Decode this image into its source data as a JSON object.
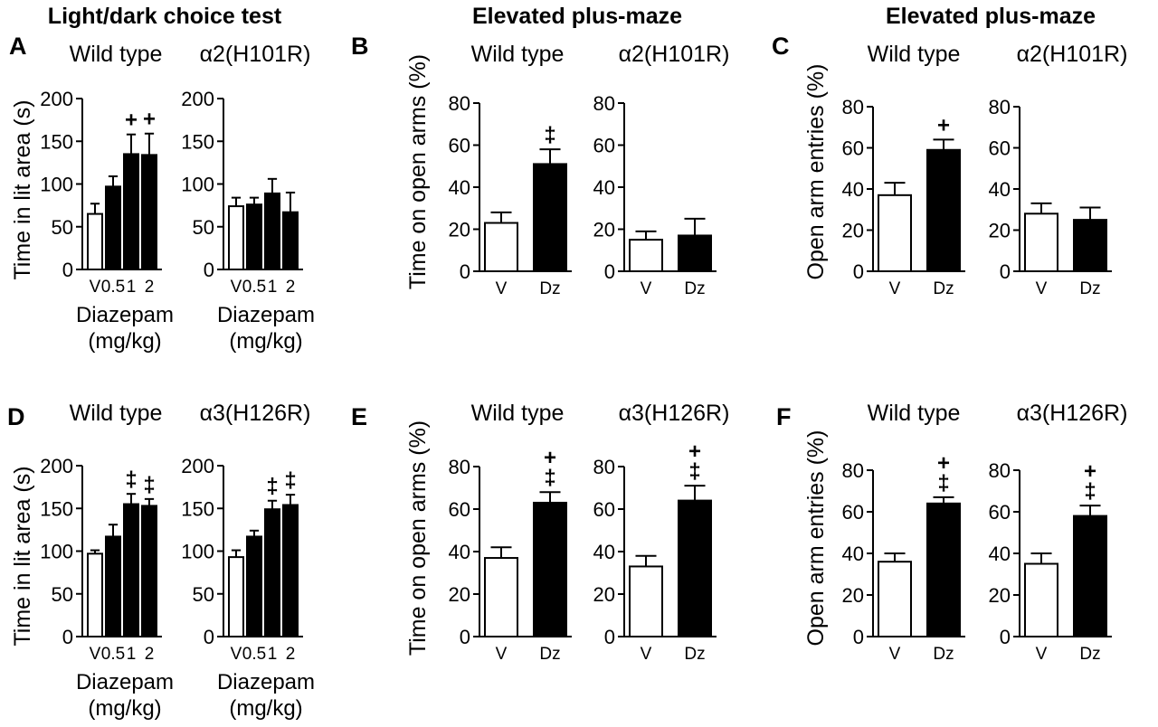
{
  "headers": [
    "Light/dark choice test",
    "Elevated plus-maze",
    "Elevated plus-maze"
  ],
  "panels": [
    {
      "letter": "A",
      "ylabel": "Time in lit area (s)",
      "xlabel": "Diazepam",
      "xunit": "(mg/kg)",
      "charts": [
        {
          "title": "Wild type",
          "type": "bar",
          "categories": [
            "V",
            "0.5",
            "1",
            "2"
          ],
          "values": [
            65,
            97,
            135,
            134
          ],
          "errors": [
            12,
            12,
            23,
            25
          ],
          "fills": [
            "white",
            "black",
            "black",
            "black"
          ],
          "sig": [
            "",
            "",
            "+",
            "+"
          ],
          "ylim": [
            0,
            200
          ],
          "yticks": [
            0,
            50,
            100,
            150,
            200
          ]
        },
        {
          "title": "α2(H101R)",
          "type": "bar",
          "categories": [
            "V",
            "0.5",
            "1",
            "2"
          ],
          "values": [
            74,
            76,
            89,
            67
          ],
          "errors": [
            10,
            8,
            17,
            23
          ],
          "fills": [
            "white",
            "black",
            "black",
            "black"
          ],
          "sig": [
            "",
            "",
            "",
            ""
          ],
          "ylim": [
            0,
            200
          ],
          "yticks": [
            0,
            50,
            100,
            150,
            200
          ]
        }
      ]
    },
    {
      "letter": "B",
      "ylabel": "Time on open arms (%)",
      "xlabel": "",
      "xunit": "",
      "charts": [
        {
          "title": "Wild type",
          "type": "bar",
          "categories": [
            "V",
            "Dz"
          ],
          "values": [
            23,
            51
          ],
          "errors": [
            5,
            7
          ],
          "fills": [
            "white",
            "black"
          ],
          "sig": [
            "",
            "‡"
          ],
          "ylim": [
            0,
            80
          ],
          "yticks": [
            0,
            20,
            40,
            60,
            80
          ]
        },
        {
          "title": "α2(H101R)",
          "type": "bar",
          "categories": [
            "V",
            "Dz"
          ],
          "values": [
            15,
            17
          ],
          "errors": [
            4,
            8
          ],
          "fills": [
            "white",
            "black"
          ],
          "sig": [
            "",
            ""
          ],
          "ylim": [
            0,
            80
          ],
          "yticks": [
            0,
            20,
            40,
            60,
            80
          ]
        }
      ]
    },
    {
      "letter": "C",
      "ylabel": "Open arm entries (%)",
      "xlabel": "",
      "xunit": "",
      "charts": [
        {
          "title": "Wild type",
          "type": "bar",
          "categories": [
            "V",
            "Dz"
          ],
          "values": [
            37,
            59
          ],
          "errors": [
            6,
            5
          ],
          "fills": [
            "white",
            "black"
          ],
          "sig": [
            "",
            "+"
          ],
          "ylim": [
            0,
            80
          ],
          "yticks": [
            0,
            20,
            40,
            60,
            80
          ]
        },
        {
          "title": "α2(H101R)",
          "type": "bar",
          "categories": [
            "V",
            "Dz"
          ],
          "values": [
            28,
            25
          ],
          "errors": [
            5,
            6
          ],
          "fills": [
            "white",
            "black"
          ],
          "sig": [
            "",
            ""
          ],
          "ylim": [
            0,
            80
          ],
          "yticks": [
            0,
            20,
            40,
            60,
            80
          ]
        }
      ]
    },
    {
      "letter": "D",
      "ylabel": "Time in lit area (s)",
      "xlabel": "Diazepam",
      "xunit": "(mg/kg)",
      "charts": [
        {
          "title": "Wild type",
          "type": "bar",
          "categories": [
            "V",
            "0.5",
            "1",
            "2"
          ],
          "values": [
            97,
            117,
            155,
            153
          ],
          "errors": [
            4,
            14,
            12,
            8
          ],
          "fills": [
            "white",
            "black",
            "black",
            "black"
          ],
          "sig": [
            "",
            "",
            "‡",
            "‡"
          ],
          "ylim": [
            0,
            200
          ],
          "yticks": [
            0,
            50,
            100,
            150,
            200
          ]
        },
        {
          "title": "α3(H126R)",
          "type": "bar",
          "categories": [
            "V",
            "0.5",
            "1",
            "2"
          ],
          "values": [
            93,
            117,
            149,
            154
          ],
          "errors": [
            8,
            7,
            10,
            12
          ],
          "fills": [
            "white",
            "black",
            "black",
            "black"
          ],
          "sig": [
            "",
            "",
            "‡",
            "‡"
          ],
          "ylim": [
            0,
            200
          ],
          "yticks": [
            0,
            50,
            100,
            150,
            200
          ]
        }
      ]
    },
    {
      "letter": "E",
      "ylabel": "Time on open arms (%)",
      "xlabel": "",
      "xunit": "",
      "charts": [
        {
          "title": "Wild type",
          "type": "bar",
          "categories": [
            "V",
            "Dz"
          ],
          "values": [
            37,
            63
          ],
          "errors": [
            5,
            5
          ],
          "fills": [
            "white",
            "black"
          ],
          "sig": [
            "",
            "‡ +"
          ],
          "ylim": [
            0,
            80
          ],
          "yticks": [
            0,
            20,
            40,
            60,
            80
          ]
        },
        {
          "title": "α3(H126R)",
          "type": "bar",
          "categories": [
            "V",
            "Dz"
          ],
          "values": [
            33,
            64
          ],
          "errors": [
            5,
            7
          ],
          "fills": [
            "white",
            "black"
          ],
          "sig": [
            "",
            "‡ +"
          ],
          "ylim": [
            0,
            80
          ],
          "yticks": [
            0,
            20,
            40,
            60,
            80
          ]
        }
      ]
    },
    {
      "letter": "F",
      "ylabel": "Open arm entries (%)",
      "xlabel": "",
      "xunit": "",
      "charts": [
        {
          "title": "Wild type",
          "type": "bar",
          "categories": [
            "V",
            "Dz"
          ],
          "values": [
            36,
            64
          ],
          "errors": [
            4,
            3
          ],
          "fills": [
            "white",
            "black"
          ],
          "sig": [
            "",
            "‡ +"
          ],
          "ylim": [
            0,
            80
          ],
          "yticks": [
            0,
            20,
            40,
            60,
            80
          ]
        },
        {
          "title": "α3(H126R)",
          "type": "bar",
          "categories": [
            "V",
            "Dz"
          ],
          "values": [
            35,
            58
          ],
          "errors": [
            5,
            5
          ],
          "fills": [
            "white",
            "black"
          ],
          "sig": [
            "",
            "‡ +"
          ],
          "ylim": [
            0,
            80
          ],
          "yticks": [
            0,
            20,
            40,
            60,
            80
          ]
        }
      ]
    }
  ],
  "chart_data": [
    {
      "panel": "A",
      "title": "Wild type",
      "type": "bar",
      "categories": [
        "V",
        "0.5",
        "1",
        "2"
      ],
      "values": [
        65,
        97,
        135,
        134
      ],
      "errors": [
        12,
        12,
        23,
        25
      ],
      "ylabel": "Time in lit area (s)",
      "xlabel": "Diazepam (mg/kg)",
      "ylim": [
        0,
        200
      ]
    },
    {
      "panel": "A",
      "title": "α2(H101R)",
      "type": "bar",
      "categories": [
        "V",
        "0.5",
        "1",
        "2"
      ],
      "values": [
        74,
        76,
        89,
        67
      ],
      "errors": [
        10,
        8,
        17,
        23
      ],
      "ylabel": "Time in lit area (s)",
      "xlabel": "Diazepam (mg/kg)",
      "ylim": [
        0,
        200
      ]
    },
    {
      "panel": "B",
      "title": "Wild type",
      "type": "bar",
      "categories": [
        "V",
        "Dz"
      ],
      "values": [
        23,
        51
      ],
      "errors": [
        5,
        7
      ],
      "ylabel": "Time on open arms (%)",
      "ylim": [
        0,
        80
      ]
    },
    {
      "panel": "B",
      "title": "α2(H101R)",
      "type": "bar",
      "categories": [
        "V",
        "Dz"
      ],
      "values": [
        15,
        17
      ],
      "errors": [
        4,
        8
      ],
      "ylabel": "Time on open arms (%)",
      "ylim": [
        0,
        80
      ]
    },
    {
      "panel": "C",
      "title": "Wild type",
      "type": "bar",
      "categories": [
        "V",
        "Dz"
      ],
      "values": [
        37,
        59
      ],
      "errors": [
        6,
        5
      ],
      "ylabel": "Open arm entries (%)",
      "ylim": [
        0,
        80
      ]
    },
    {
      "panel": "C",
      "title": "α2(H101R)",
      "type": "bar",
      "categories": [
        "V",
        "Dz"
      ],
      "values": [
        28,
        25
      ],
      "errors": [
        5,
        6
      ],
      "ylabel": "Open arm entries (%)",
      "ylim": [
        0,
        80
      ]
    },
    {
      "panel": "D",
      "title": "Wild type",
      "type": "bar",
      "categories": [
        "V",
        "0.5",
        "1",
        "2"
      ],
      "values": [
        97,
        117,
        155,
        153
      ],
      "errors": [
        4,
        14,
        12,
        8
      ],
      "ylabel": "Time in lit area (s)",
      "xlabel": "Diazepam (mg/kg)",
      "ylim": [
        0,
        200
      ]
    },
    {
      "panel": "D",
      "title": "α3(H126R)",
      "type": "bar",
      "categories": [
        "V",
        "0.5",
        "1",
        "2"
      ],
      "values": [
        93,
        117,
        149,
        154
      ],
      "errors": [
        8,
        7,
        10,
        12
      ],
      "ylabel": "Time in lit area (s)",
      "xlabel": "Diazepam (mg/kg)",
      "ylim": [
        0,
        200
      ]
    },
    {
      "panel": "E",
      "title": "Wild type",
      "type": "bar",
      "categories": [
        "V",
        "Dz"
      ],
      "values": [
        37,
        63
      ],
      "errors": [
        5,
        5
      ],
      "ylabel": "Time on open arms (%)",
      "ylim": [
        0,
        80
      ]
    },
    {
      "panel": "E",
      "title": "α3(H126R)",
      "type": "bar",
      "categories": [
        "V",
        "Dz"
      ],
      "values": [
        33,
        64
      ],
      "errors": [
        5,
        7
      ],
      "ylabel": "Time on open arms (%)",
      "ylim": [
        0,
        80
      ]
    },
    {
      "panel": "F",
      "title": "Wild type",
      "type": "bar",
      "categories": [
        "V",
        "Dz"
      ],
      "values": [
        36,
        64
      ],
      "errors": [
        4,
        3
      ],
      "ylabel": "Open arm entries (%)",
      "ylim": [
        0,
        80
      ]
    },
    {
      "panel": "F",
      "title": "α3(H126R)",
      "type": "bar",
      "categories": [
        "V",
        "Dz"
      ],
      "values": [
        35,
        58
      ],
      "errors": [
        5,
        5
      ],
      "ylabel": "Open arm entries (%)",
      "ylim": [
        0,
        80
      ]
    }
  ]
}
